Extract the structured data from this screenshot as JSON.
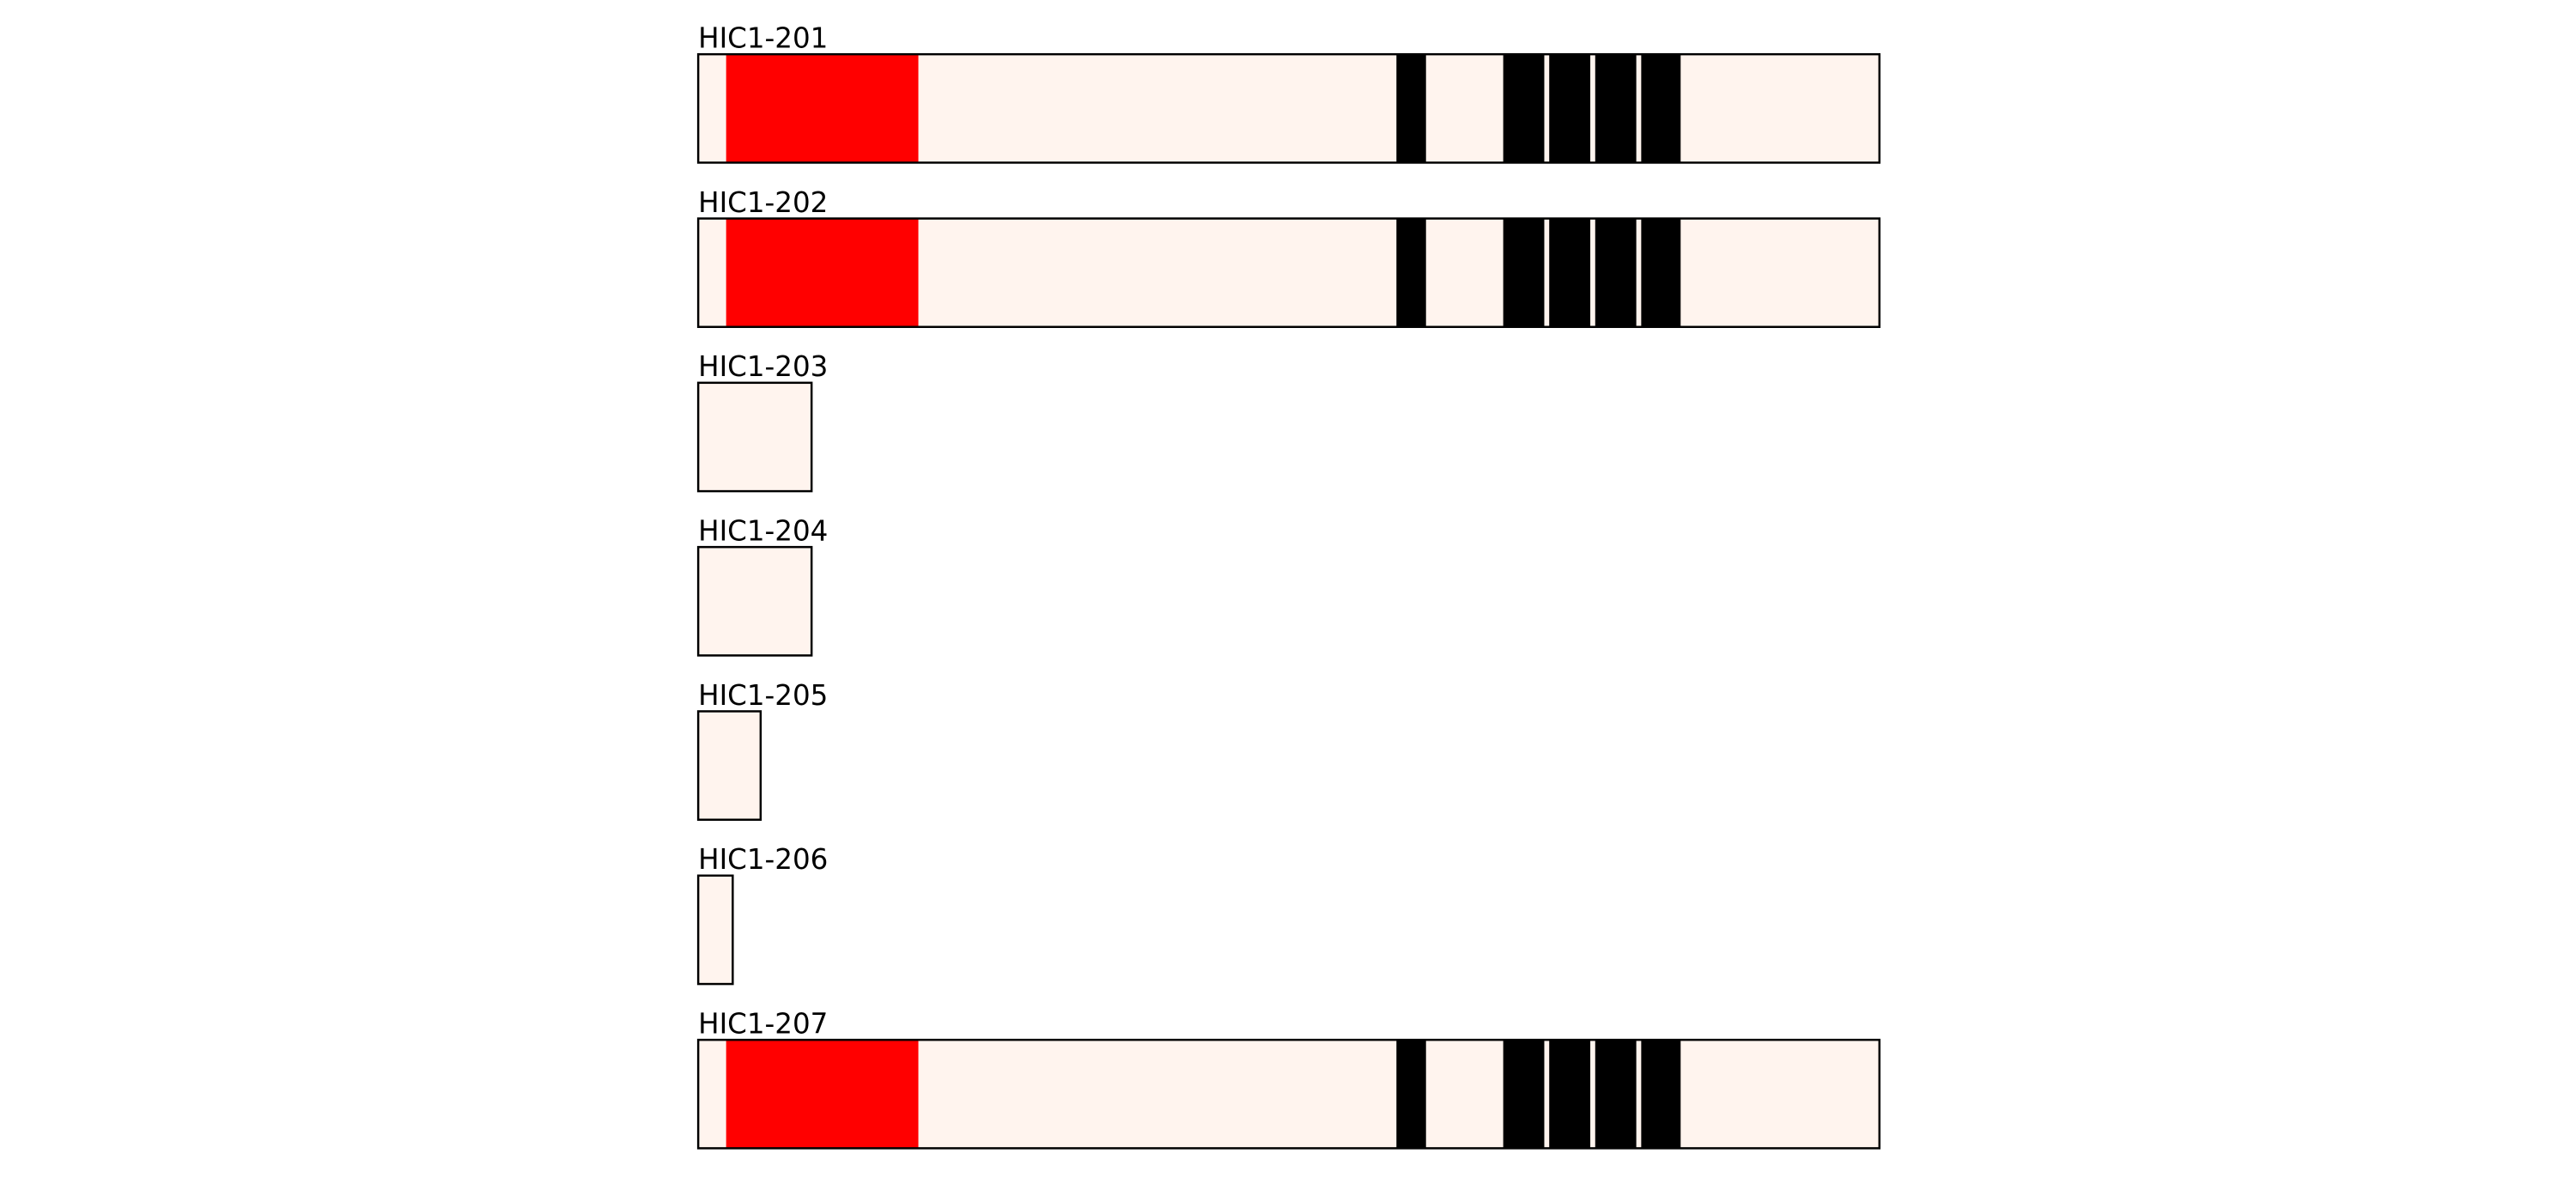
{
  "transcripts": [
    {
      "label": "HIC1-201"
    },
    {
      "label": "HIC1-202"
    },
    {
      "label": "HIC1-203"
    },
    {
      "label": "HIC1-204"
    },
    {
      "label": "HIC1-205"
    },
    {
      "label": "HIC1-206"
    },
    {
      "label": "HIC1-207"
    }
  ]
}
